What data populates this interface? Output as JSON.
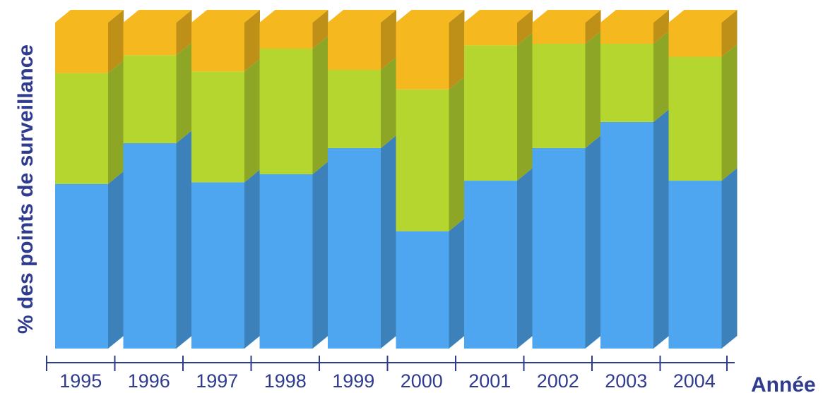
{
  "chart_data": {
    "type": "bar",
    "stacked": true,
    "three_d": true,
    "title": "",
    "xlabel": "Année",
    "ylabel": "% des points de surveillance",
    "categories": [
      "1995",
      "1996",
      "1997",
      "1998",
      "1999",
      "2000",
      "2001",
      "2002",
      "2003",
      "2004"
    ],
    "ylim": [
      0,
      100
    ],
    "series": [
      {
        "color": "#4da6ef",
        "values": [
          50.5,
          63.0,
          51.0,
          53.5,
          61.5,
          36.0,
          51.5,
          61.5,
          69.5,
          51.5
        ]
      },
      {
        "color": "#b5d52f",
        "values": [
          34.0,
          27.0,
          34.0,
          38.5,
          24.0,
          43.5,
          41.5,
          32.0,
          24.0,
          38.0
        ]
      },
      {
        "color": "#f5b81f",
        "values": [
          15.5,
          10.0,
          15.0,
          8.0,
          14.5,
          20.5,
          7.0,
          6.5,
          6.5,
          10.5
        ]
      }
    ],
    "grid": false,
    "legend": "none"
  }
}
